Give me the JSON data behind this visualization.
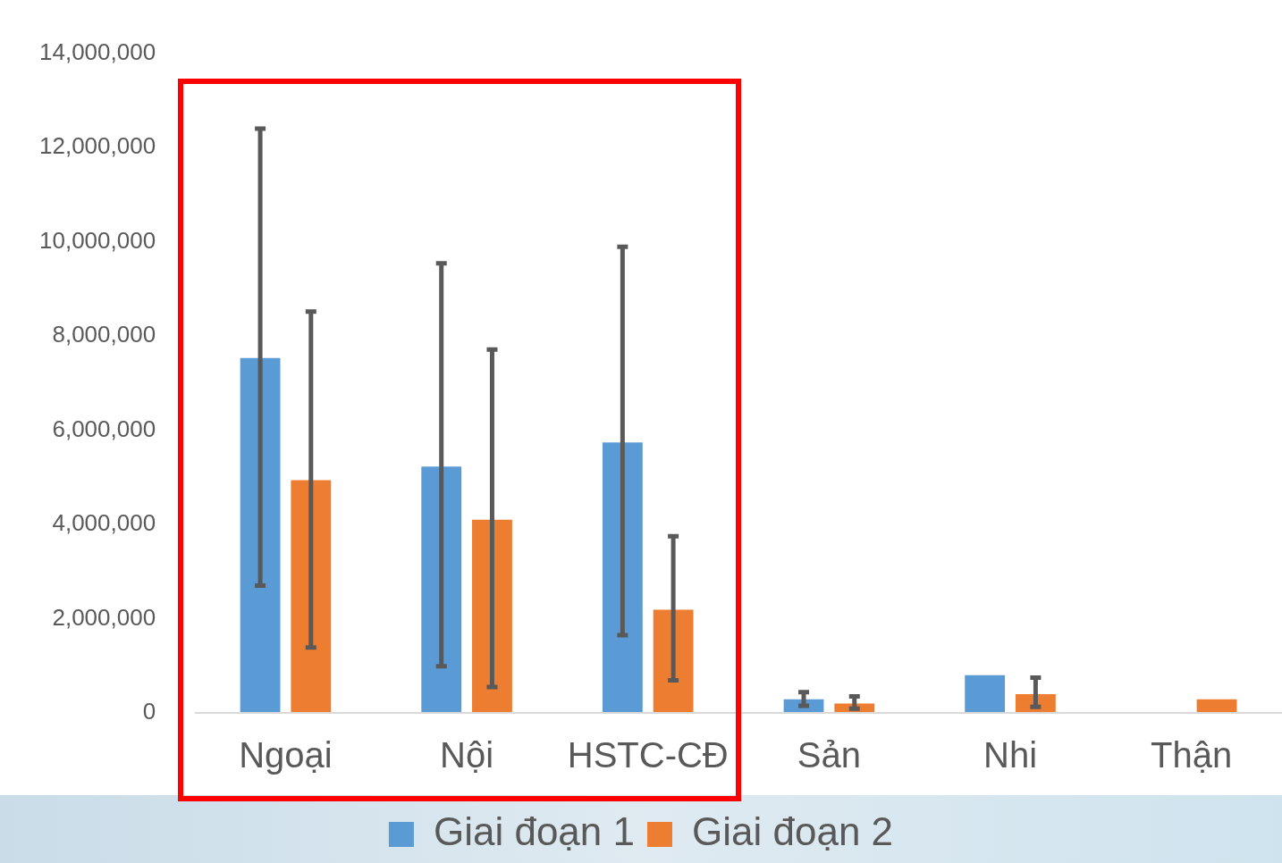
{
  "chart_data": {
    "type": "bar",
    "categories": [
      "Ngoại",
      "Nội",
      "HSTC-CĐ",
      "Sản",
      "Nhi",
      "Thận"
    ],
    "series": [
      {
        "name": "Giai đoạn 1",
        "color": "#5b9bd5",
        "values": [
          7530000,
          5230000,
          5740000,
          290000,
          800000,
          null
        ],
        "errors": [
          [
            2700000,
            12400000
          ],
          [
            990000,
            9540000
          ],
          [
            1650000,
            9890000
          ],
          [
            150000,
            440000
          ],
          null,
          null
        ]
      },
      {
        "name": "Giai đoạn 2",
        "color": "#ed7d31",
        "values": [
          4940000,
          4100000,
          2190000,
          200000,
          400000,
          290000
        ],
        "errors": [
          [
            1390000,
            8520000
          ],
          [
            550000,
            7710000
          ],
          [
            690000,
            3750000
          ],
          [
            90000,
            350000
          ],
          [
            130000,
            750000
          ],
          null
        ]
      }
    ],
    "ylim": [
      0,
      14000000
    ],
    "yticks": [
      0,
      {
        "value": 2000000,
        "label": "2,000,000"
      },
      {
        "value": 4000000,
        "label": "4,000,000"
      },
      {
        "value": 6000000,
        "label": "6,000,000"
      },
      {
        "value": 8000000,
        "label": "8,000,000"
      },
      {
        "value": 10000000,
        "label": "10,000,000"
      },
      {
        "value": 12000000,
        "label": "12,000,000"
      },
      {
        "value": 14000000,
        "label": "14,000,000"
      }
    ],
    "grid": false,
    "legend": "bottom"
  }
}
